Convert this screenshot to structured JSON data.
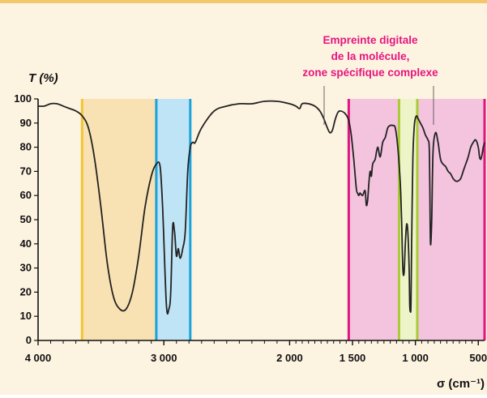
{
  "chart_data": {
    "type": "line",
    "ylabel": "T (%)",
    "xlabel": "σ (cm⁻¹)",
    "xlim": [
      4000,
      450
    ],
    "ylim": [
      0,
      100
    ],
    "x_ticks": [
      4000,
      3000,
      2000,
      1500,
      1000,
      500
    ],
    "x_tick_labels": [
      "4 000",
      "3 000",
      "2 000",
      "1 500",
      "1 000",
      "500"
    ],
    "y_ticks": [
      0,
      10,
      20,
      30,
      40,
      50,
      60,
      70,
      80,
      90,
      100
    ],
    "y_tick_labels": [
      "0",
      "10",
      "20",
      "30",
      "40",
      "50",
      "60",
      "70",
      "80",
      "90",
      "100"
    ],
    "grid": false,
    "annotation": {
      "lines": [
        "Empreinte digitale",
        "de la molécule,",
        "zone spécifique complexe"
      ],
      "color": "#e6157e"
    },
    "bands": [
      {
        "from": 3650,
        "to": 3060,
        "color": "#f8e2b3",
        "edge": "#f2c532"
      },
      {
        "from": 3060,
        "to": 2790,
        "color": "#bfe4f5",
        "edge": "#1aa2dc"
      },
      {
        "from": 1530,
        "to": 450,
        "color": "#f4c4df",
        "edge": "#e0157f"
      },
      {
        "from": 1130,
        "to": 985,
        "color": "#edf4c8",
        "edge": "#a8cc36"
      }
    ],
    "series": [
      {
        "color": "#222222",
        "x": [
          4000,
          3950,
          3900,
          3850,
          3800,
          3750,
          3700,
          3650,
          3600,
          3550,
          3500,
          3450,
          3400,
          3350,
          3300,
          3250,
          3200,
          3150,
          3100,
          3060,
          3030,
          3010,
          2980,
          2960,
          2945,
          2930,
          2915,
          2900,
          2885,
          2870,
          2850,
          2830,
          2810,
          2790,
          2770,
          2750,
          2700,
          2600,
          2500,
          2400,
          2300,
          2200,
          2100,
          2000,
          1950,
          1920,
          1900,
          1850,
          1800,
          1760,
          1730,
          1700,
          1680,
          1660,
          1640,
          1620,
          1600,
          1560,
          1530,
          1510,
          1490,
          1470,
          1460,
          1450,
          1440,
          1420,
          1400,
          1390,
          1380,
          1370,
          1360,
          1350,
          1340,
          1320,
          1300,
          1280,
          1260,
          1240,
          1220,
          1200,
          1180,
          1160,
          1140,
          1120,
          1110,
          1100,
          1090,
          1080,
          1070,
          1060,
          1050,
          1045,
          1040,
          1035,
          1030,
          1020,
          1010,
          1000,
          990,
          980,
          960,
          940,
          920,
          900,
          890,
          885,
          880,
          870,
          860,
          840,
          820,
          800,
          780,
          760,
          740,
          720,
          700,
          680,
          660,
          640,
          620,
          600,
          580,
          560,
          540,
          520,
          500,
          490,
          480,
          470,
          460,
          450
        ],
        "values": [
          97,
          97,
          98,
          98,
          97,
          96,
          95,
          93,
          88,
          75,
          55,
          32,
          18,
          13,
          13,
          20,
          35,
          55,
          68,
          73,
          72,
          55,
          15,
          13,
          20,
          47,
          45,
          35,
          38,
          34,
          38,
          45,
          70,
          80,
          82,
          82,
          88,
          95,
          97,
          98,
          98,
          99,
          99,
          98,
          97,
          96,
          98,
          98,
          97,
          95,
          92,
          88,
          86,
          87,
          91,
          94,
          95,
          94,
          91,
          85,
          75,
          63,
          61,
          60,
          61,
          60,
          62,
          56,
          58,
          65,
          70,
          68,
          73,
          75,
          80,
          76,
          82,
          84,
          88,
          89,
          89,
          88,
          80,
          65,
          50,
          30,
          28,
          40,
          48,
          45,
          30,
          15,
          12,
          15,
          40,
          75,
          88,
          92,
          93,
          92,
          90,
          88,
          85,
          83,
          80,
          62,
          40,
          50,
          78,
          86,
          82,
          75,
          73,
          72,
          70,
          69,
          67,
          66,
          66,
          67,
          70,
          73,
          76,
          80,
          82,
          83,
          80,
          76,
          75,
          77,
          80,
          82
        ]
      }
    ]
  }
}
